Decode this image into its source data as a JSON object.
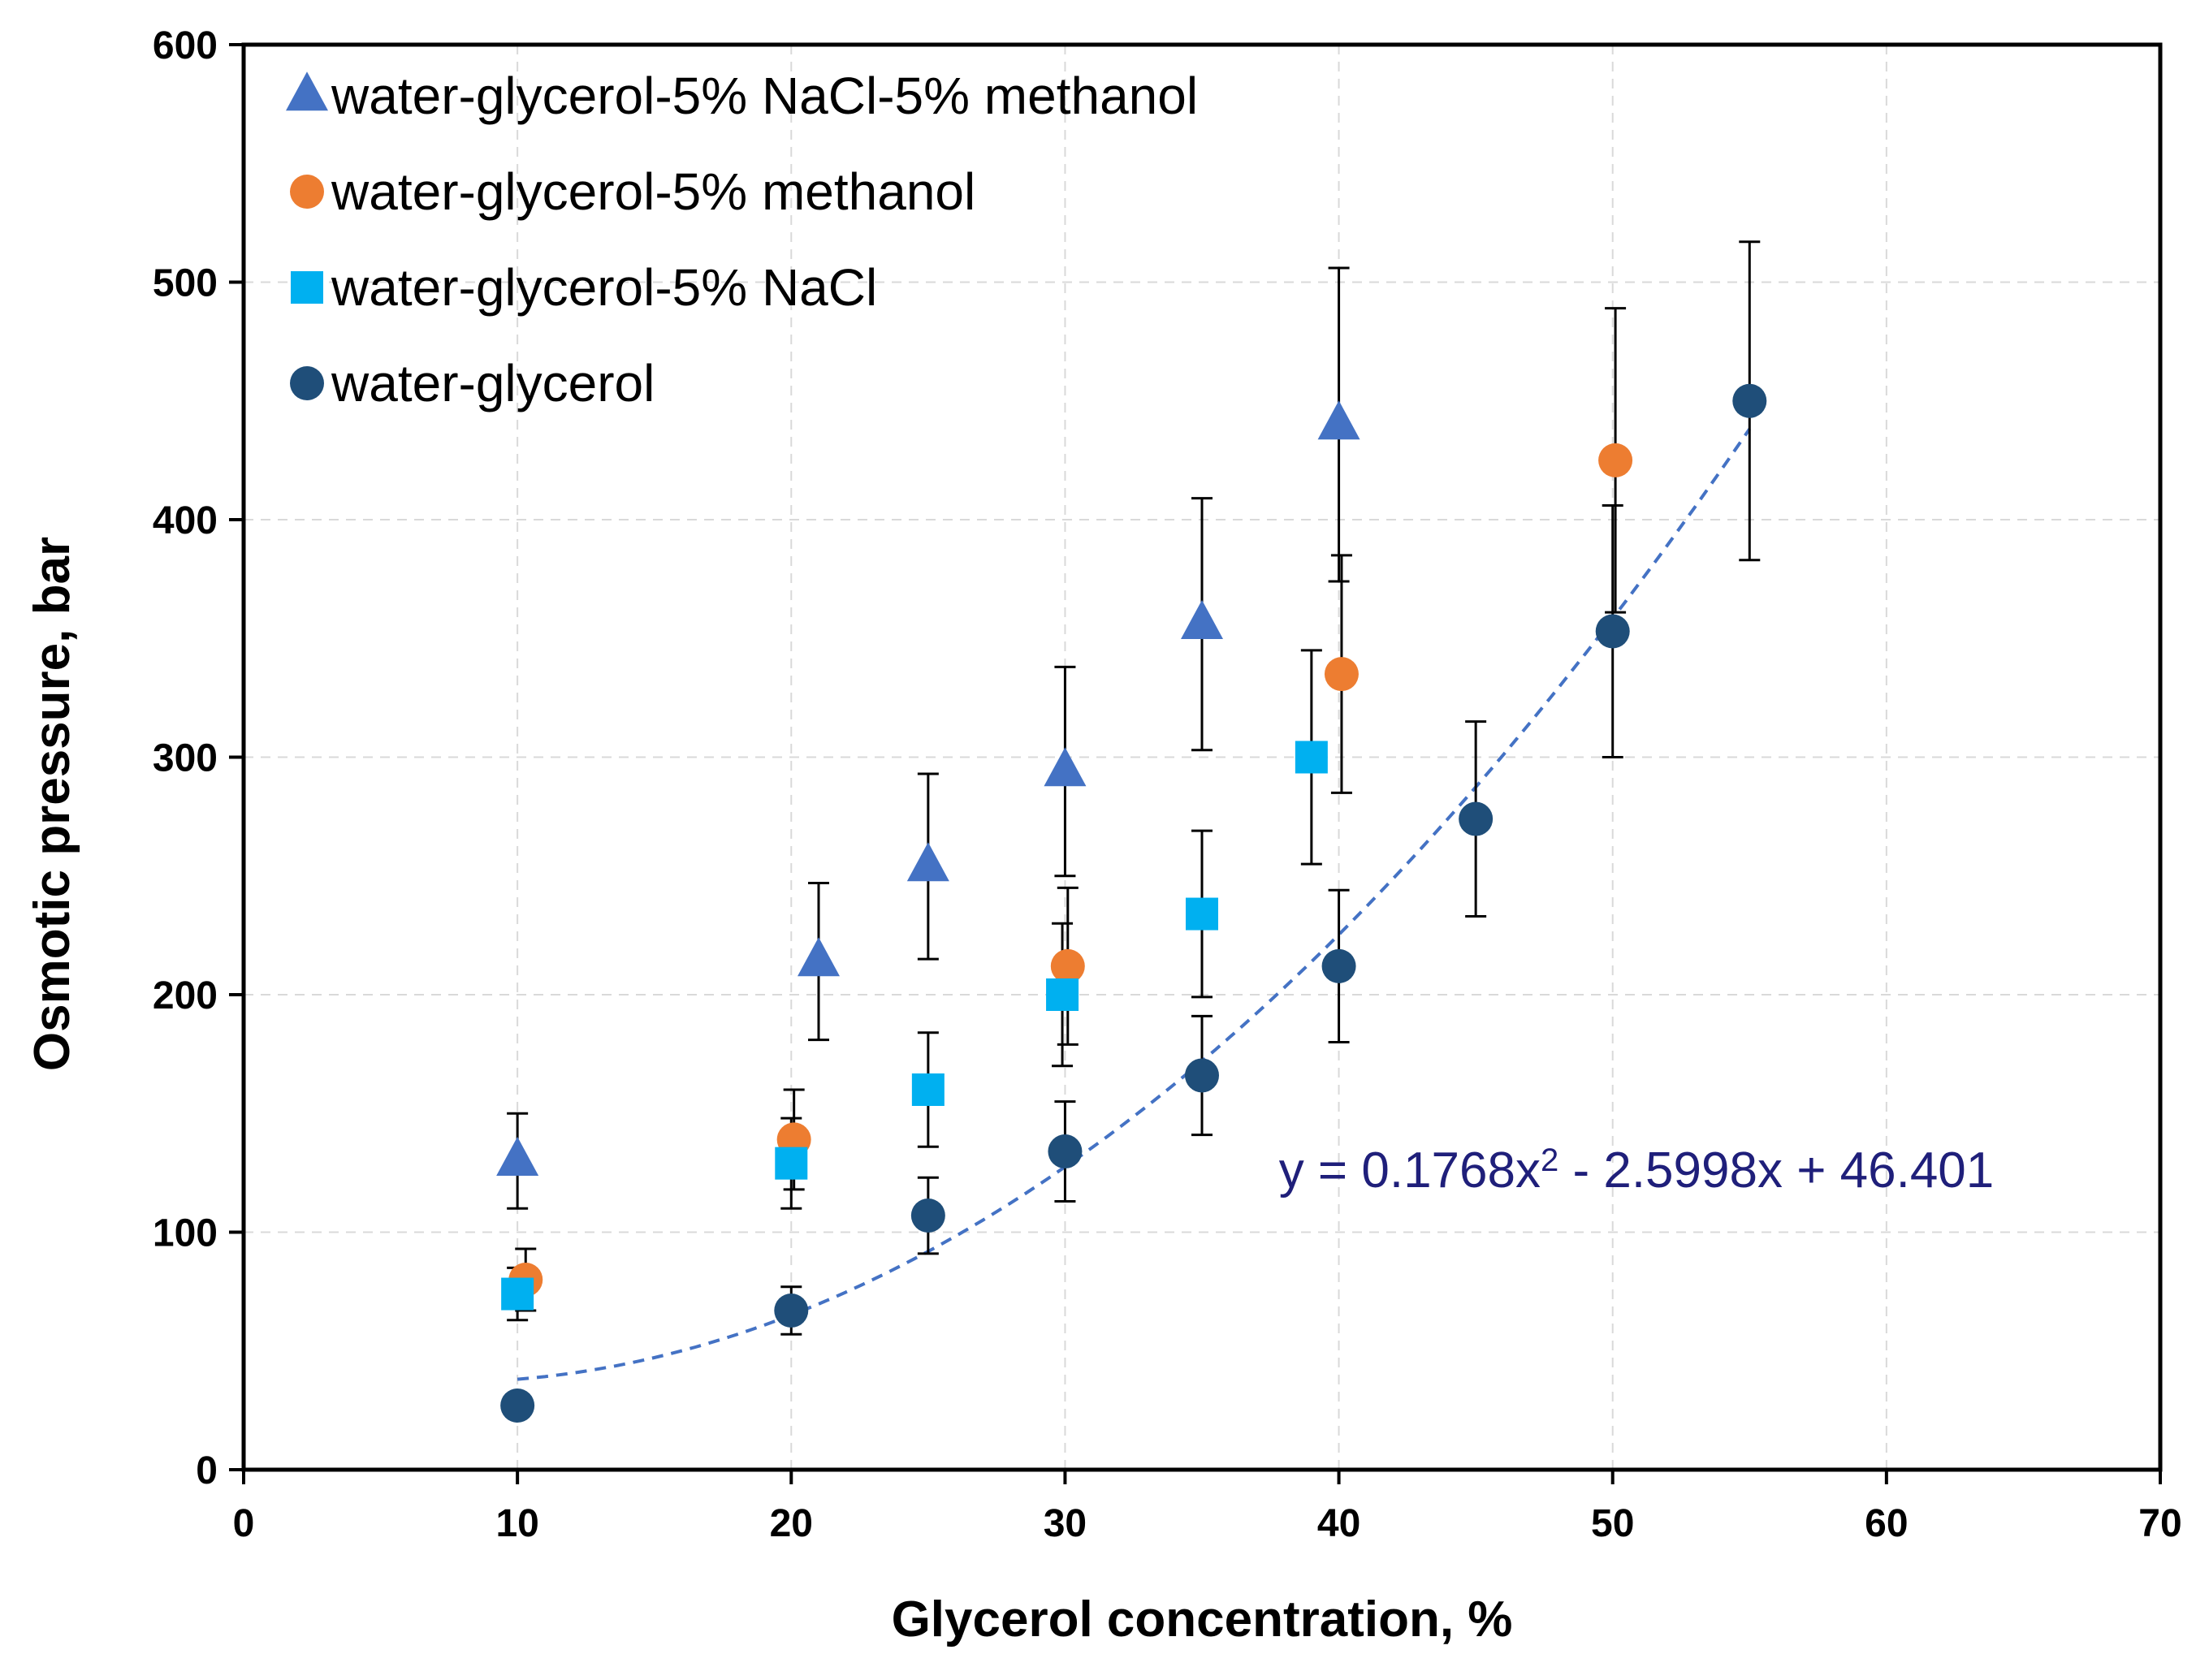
{
  "chart_data": {
    "type": "scatter",
    "title": "",
    "xlabel": "Glycerol concentration, %",
    "ylabel": "Osmotic pressure, bar",
    "xlim": [
      0,
      70
    ],
    "ylim": [
      0,
      600
    ],
    "xticks": [
      0,
      10,
      20,
      30,
      40,
      50,
      60,
      70
    ],
    "yticks": [
      0,
      100,
      200,
      300,
      400,
      500,
      600
    ],
    "grid": true,
    "legend_position": "top-left",
    "series": [
      {
        "name": "water-glycerol-5% NaCl-5% methanol",
        "marker": "triangle",
        "color": "#4472C4",
        "points": [
          {
            "x": 10,
            "y": 130,
            "err": 20
          },
          {
            "x": 21,
            "y": 214,
            "err": 33
          },
          {
            "x": 25,
            "y": 254,
            "err": 39
          },
          {
            "x": 30,
            "y": 294,
            "err": 44
          },
          {
            "x": 35,
            "y": 356,
            "err": 53
          },
          {
            "x": 40,
            "y": 440,
            "err": 66
          }
        ]
      },
      {
        "name": "water-glycerol-5% methanol",
        "marker": "circle",
        "color": "#ED7D31",
        "points": [
          {
            "x": 10.3,
            "y": 80,
            "err": 13
          },
          {
            "x": 20.1,
            "y": 139,
            "err": 21
          },
          {
            "x": 30.1,
            "y": 212,
            "err": 33
          },
          {
            "x": 40.1,
            "y": 335,
            "err": 50
          },
          {
            "x": 50.1,
            "y": 425,
            "err": 64
          }
        ]
      },
      {
        "name": "water-glycerol-5% NaCl",
        "marker": "square",
        "color": "#00B0F0",
        "points": [
          {
            "x": 10,
            "y": 74,
            "err": 11
          },
          {
            "x": 20,
            "y": 129,
            "err": 19
          },
          {
            "x": 25,
            "y": 160,
            "err": 24
          },
          {
            "x": 29.9,
            "y": 200,
            "err": 30
          },
          {
            "x": 35,
            "y": 234,
            "err": 35
          },
          {
            "x": 39,
            "y": 300,
            "err": 45
          }
        ]
      },
      {
        "name": "water-glycerol",
        "marker": "circle",
        "color": "#1F4E79",
        "points": [
          {
            "x": 10,
            "y": 27,
            "err": 0
          },
          {
            "x": 20,
            "y": 67,
            "err": 10
          },
          {
            "x": 25,
            "y": 107,
            "err": 16
          },
          {
            "x": 30,
            "y": 134,
            "err": 21
          },
          {
            "x": 35,
            "y": 166,
            "err": 25
          },
          {
            "x": 40,
            "y": 212,
            "err": 32
          },
          {
            "x": 45,
            "y": 274,
            "err": 41
          },
          {
            "x": 50,
            "y": 353,
            "err": 53
          },
          {
            "x": 55,
            "y": 450,
            "err": 67
          }
        ]
      }
    ],
    "trendline": {
      "series": "water-glycerol",
      "type": "polynomial",
      "coefficients": {
        "a": 0.1768,
        "b": -2.5998,
        "c": 46.401
      },
      "x_range": [
        10,
        55
      ],
      "color": "#4472C4",
      "equation": {
        "prefix": "y = 0.1768x",
        "exponent": "2",
        "suffix": " - 2.5998x + 46.401",
        "color": "#1F1F7A"
      }
    }
  }
}
